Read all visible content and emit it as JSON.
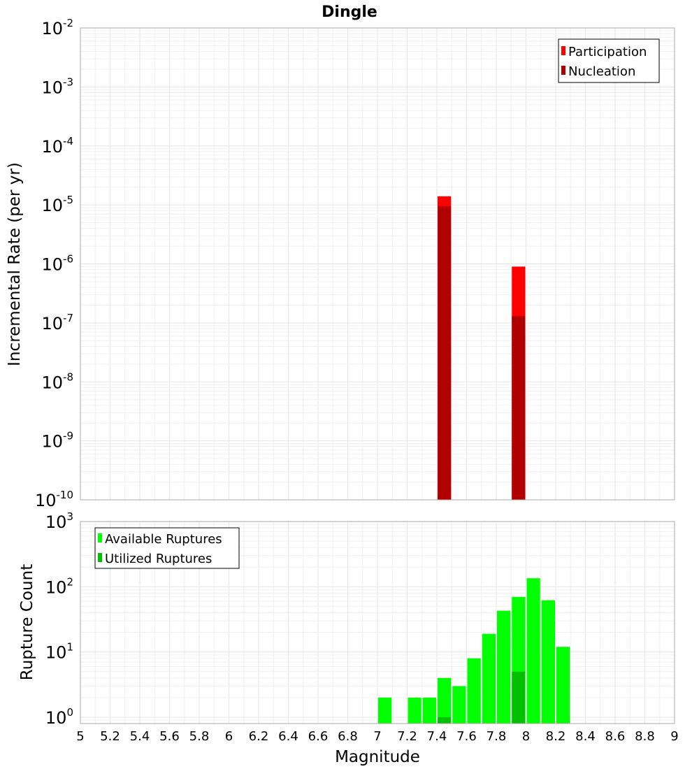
{
  "chart_data": [
    {
      "type": "bar",
      "title": "Dingle",
      "xlabel": "",
      "ylabel": "Incremental Rate (per yr)",
      "yscale": "log",
      "ylim": [
        1e-10,
        0.01
      ],
      "xlim": [
        5,
        9
      ],
      "bin_width": 0.1,
      "y_ticks": [
        {
          "base": "10",
          "exp": "-2"
        },
        {
          "base": "10",
          "exp": "-3"
        },
        {
          "base": "10",
          "exp": "-4"
        },
        {
          "base": "10",
          "exp": "-5"
        },
        {
          "base": "10",
          "exp": "-6"
        },
        {
          "base": "10",
          "exp": "-7"
        },
        {
          "base": "10",
          "exp": "-8"
        },
        {
          "base": "10",
          "exp": "-9"
        },
        {
          "base": "10",
          "exp": "-10"
        }
      ],
      "legend": {
        "position": "top-right"
      },
      "series": [
        {
          "name": "Participation",
          "color": "#ff0000",
          "x": [
            7.45,
            7.95
          ],
          "values": [
            1.4e-05,
            9e-07
          ]
        },
        {
          "name": "Nucleation",
          "color": "#b00000",
          "x": [
            7.45,
            7.95
          ],
          "values": [
            9.5e-06,
            1.3e-07
          ]
        }
      ]
    },
    {
      "type": "bar",
      "title": "",
      "xlabel": "Magnitude",
      "ylabel": "Rupture Count",
      "yscale": "log",
      "ylim": [
        0.8,
        1000
      ],
      "xlim": [
        5,
        9
      ],
      "bin_width": 0.1,
      "x_ticks": [
        "5",
        "5.2",
        "5.4",
        "5.6",
        "5.8",
        "6",
        "6.2",
        "6.4",
        "6.6",
        "6.8",
        "7",
        "7.2",
        "7.4",
        "7.6",
        "7.8",
        "8",
        "8.2",
        "8.4",
        "8.6",
        "8.8",
        "9"
      ],
      "y_ticks": [
        {
          "base": "10",
          "exp": "3"
        },
        {
          "base": "10",
          "exp": "2"
        },
        {
          "base": "10",
          "exp": "1"
        },
        {
          "base": "10",
          "exp": "0"
        }
      ],
      "legend": {
        "position": "top-left"
      },
      "series": [
        {
          "name": "Available Ruptures",
          "color": "#00ff00",
          "x": [
            7.05,
            7.25,
            7.35,
            7.45,
            7.55,
            7.65,
            7.75,
            7.85,
            7.95,
            8.05,
            8.15,
            8.25
          ],
          "values": [
            2,
            2,
            2,
            4,
            3,
            8,
            19,
            43,
            70,
            135,
            62,
            12
          ]
        },
        {
          "name": "Utilized Ruptures",
          "color": "#00c000",
          "x": [
            7.45,
            7.95
          ],
          "values": [
            1,
            5
          ]
        }
      ]
    }
  ]
}
